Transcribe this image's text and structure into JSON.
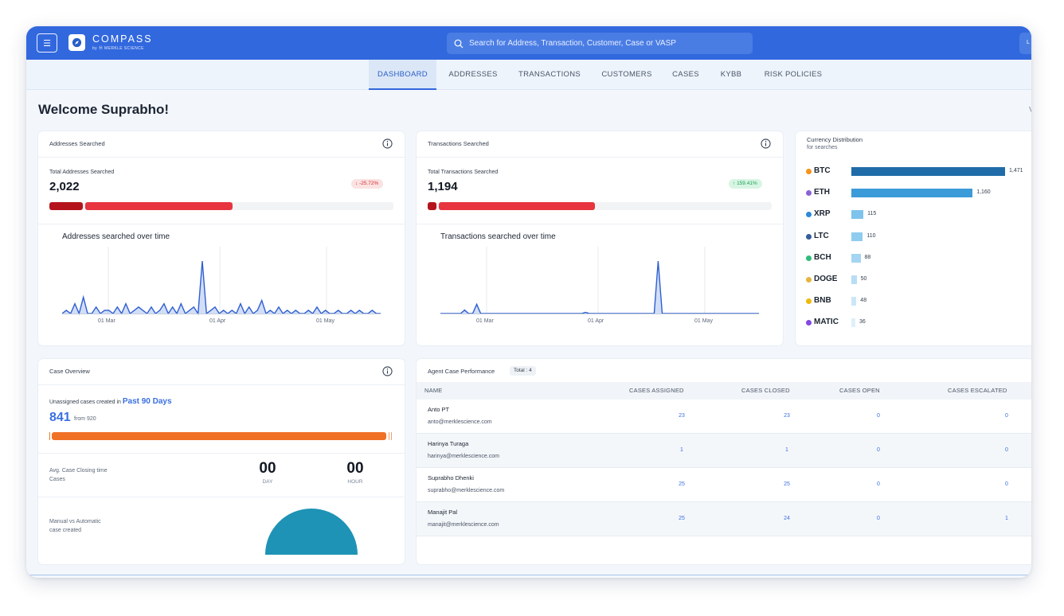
{
  "app": {
    "brand": "COMPASS",
    "brand_sub": "by Ⓜ MERKLE SCIENCE",
    "search_placeholder": "Search for Address, Transaction, Customer, Case or VASP",
    "user_initial": "L"
  },
  "nav": {
    "tabs": [
      {
        "label": "DASHBOARD",
        "active": true
      },
      {
        "label": "ADDRESSES",
        "active": false
      },
      {
        "label": "TRANSACTIONS",
        "active": false
      },
      {
        "label": "CUSTOMERS",
        "active": false
      },
      {
        "label": "CASES",
        "active": false
      },
      {
        "label": "KYBB",
        "active": false
      },
      {
        "label": "RISK POLICIES",
        "active": false
      }
    ]
  },
  "welcome": "Welcome Suprabho!",
  "edge_char": "V",
  "addresses": {
    "title": "Addresses Searched",
    "total_label": "Total Addresses Searched",
    "total": "2,022",
    "change": "-25.72%",
    "chart_title": "Addresses searched over time",
    "ticks": [
      "01 Mar",
      "01 Apr",
      "01 May"
    ],
    "series": [
      0,
      1,
      0,
      3,
      0,
      5,
      0,
      0,
      2,
      0,
      1,
      1,
      0,
      2,
      0,
      3,
      0,
      1,
      2,
      1,
      0,
      2,
      0,
      1,
      3,
      0,
      2,
      0,
      3,
      0,
      1,
      2,
      0,
      16,
      0,
      1,
      2,
      0,
      1,
      0,
      1,
      0,
      3,
      0,
      2,
      0,
      1,
      4,
      0,
      1,
      0,
      2,
      0,
      1,
      0,
      1,
      0,
      0,
      1,
      0,
      2,
      0,
      1,
      0,
      0,
      1,
      0,
      0,
      1,
      0,
      1,
      0,
      0,
      1,
      0,
      0
    ]
  },
  "transactions": {
    "title": "Transactions Searched",
    "total_label": "Total Transactions Searched",
    "total": "1,194",
    "change": "159.41%",
    "chart_title": "Transactions searched over time",
    "ticks": [
      "01 Mar",
      "01 Apr",
      "01 May"
    ],
    "series": [
      0,
      0,
      0,
      0,
      0,
      0,
      3,
      0,
      0,
      8,
      0,
      0,
      0,
      0,
      0,
      0,
      0,
      0,
      0,
      0,
      0,
      0,
      0,
      0,
      0,
      0,
      0,
      0,
      0,
      0,
      0,
      0,
      0,
      0,
      0,
      0,
      1,
      0,
      0,
      0,
      0,
      0,
      0,
      0,
      0,
      0,
      0,
      0,
      0,
      0,
      0,
      0,
      0,
      0,
      45,
      0,
      0,
      0,
      0,
      0,
      0,
      0,
      0,
      0,
      0,
      0,
      0,
      0,
      0,
      0,
      0,
      0,
      0,
      0,
      0,
      0,
      0,
      0,
      0,
      0
    ]
  },
  "currency": {
    "title": "Currency Distribution",
    "subtitle": "for searches",
    "colors": {
      "bar_dark": "#1f6ca8",
      "bar_mid": "#3b9bd8",
      "bar_light": "#7dc3ec"
    },
    "items": [
      {
        "name": "BTC",
        "value": 1471,
        "label": "1,471",
        "dot": "#f7931a"
      },
      {
        "name": "ETH",
        "value": 1160,
        "label": "1,160",
        "dot": "#8a62d6"
      },
      {
        "name": "XRP",
        "value": 115,
        "label": "115",
        "dot": "#2b89d8"
      },
      {
        "name": "LTC",
        "value": 110,
        "label": "110",
        "dot": "#345d9d"
      },
      {
        "name": "BCH",
        "value": 88,
        "label": "88",
        "dot": "#2ebd7a"
      },
      {
        "name": "DOGE",
        "value": 50,
        "label": "50",
        "dot": "#e5b53d"
      },
      {
        "name": "BNB",
        "value": 48,
        "label": "48",
        "dot": "#f0b90b"
      },
      {
        "name": "MATIC",
        "value": 36,
        "label": "36",
        "dot": "#8247e5"
      }
    ]
  },
  "cases": {
    "title": "Case Overview",
    "unassigned_prefix": "Unassigned cases created in ",
    "period": "Past 90 Days",
    "count": "841",
    "from_text": "from 920",
    "avg_label_1": "Avg. Case Closing time",
    "avg_label_2": "Cases",
    "days": "00",
    "days_label": "DAY",
    "hours": "00",
    "hours_label": "HOUR",
    "manual_label_1": "Manual vs Automatic",
    "manual_label_2": "case created"
  },
  "agents": {
    "title": "Agent Case Performance",
    "total": "Total : 4",
    "columns": [
      "NAME",
      "CASES ASSIGNED",
      "CASES CLOSED",
      "CASES OPEN",
      "CASES ESCALATED"
    ],
    "rows": [
      {
        "name": "Anto PT",
        "email": "anto@merklescience.com",
        "assigned": "23",
        "closed": "23",
        "open": "0",
        "escalated": "0"
      },
      {
        "name": "Harinya Turaga",
        "email": "harinya@merklescience.com",
        "assigned": "1",
        "closed": "1",
        "open": "0",
        "escalated": "0"
      },
      {
        "name": "Suprabho Dhenki",
        "email": "suprabho@merklescience.com",
        "assigned": "25",
        "closed": "25",
        "open": "0",
        "escalated": "0"
      },
      {
        "name": "Manajit Pal",
        "email": "manajit@merklescience.com",
        "assigned": "25",
        "closed": "24",
        "open": "0",
        "escalated": "1"
      }
    ]
  }
}
